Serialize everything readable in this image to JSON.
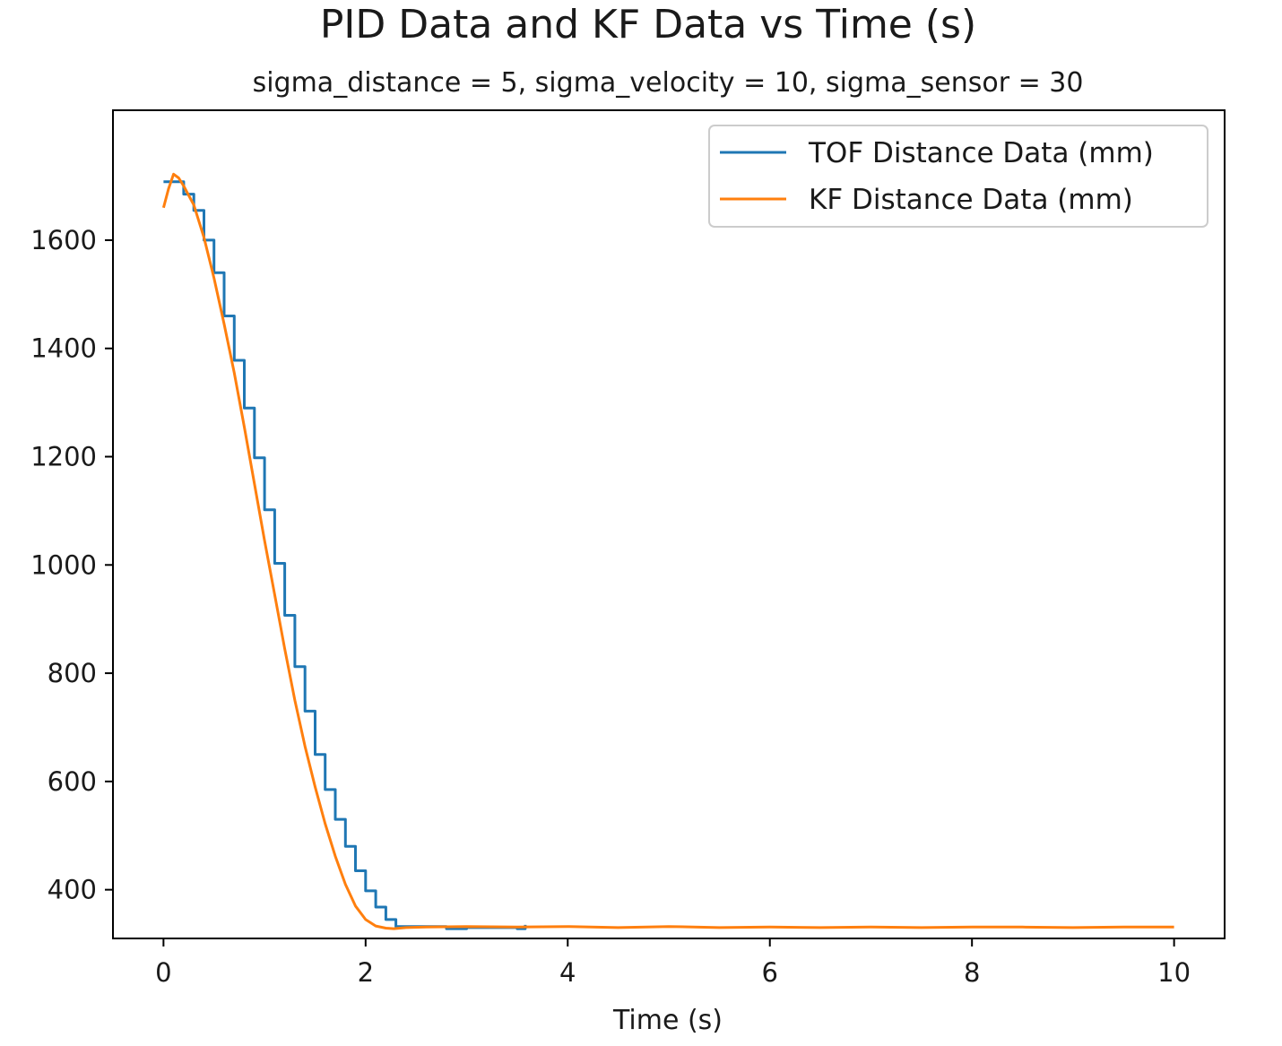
{
  "chart_data": {
    "type": "line",
    "title": "PID Data and KF Data vs Time (s)",
    "subtitle": "sigma_distance = 5, sigma_velocity = 10, sigma_sensor = 30",
    "xlabel": "Time (s)",
    "ylabel": "",
    "xlim": [
      -0.5,
      10.5
    ],
    "ylim": [
      310,
      1840
    ],
    "xticks": [
      0,
      2,
      4,
      6,
      8,
      10
    ],
    "yticks": [
      400,
      600,
      800,
      1000,
      1200,
      1400,
      1600
    ],
    "grid": false,
    "legend_position": "top-right",
    "series": [
      {
        "name": "TOF Distance Data (mm)",
        "color": "#1f77b4",
        "step": true,
        "x": [
          0.0,
          0.1,
          0.2,
          0.3,
          0.4,
          0.5,
          0.6,
          0.7,
          0.8,
          0.9,
          1.0,
          1.1,
          1.2,
          1.3,
          1.4,
          1.5,
          1.6,
          1.7,
          1.8,
          1.9,
          2.0,
          2.1,
          2.2,
          2.3,
          2.5,
          2.8,
          3.0,
          3.3,
          3.5,
          3.58
        ],
        "y": [
          1708,
          1708,
          1685,
          1655,
          1600,
          1540,
          1460,
          1378,
          1290,
          1198,
          1102,
          1003,
          907,
          812,
          730,
          650,
          585,
          530,
          480,
          435,
          398,
          368,
          345,
          332,
          332,
          328,
          330,
          330,
          328,
          335
        ]
      },
      {
        "name": "KF Distance Data (mm)",
        "color": "#ff7f0e",
        "step": false,
        "x": [
          0.0,
          0.05,
          0.1,
          0.15,
          0.2,
          0.3,
          0.4,
          0.5,
          0.6,
          0.7,
          0.8,
          0.9,
          1.0,
          1.1,
          1.2,
          1.3,
          1.4,
          1.5,
          1.6,
          1.7,
          1.8,
          1.9,
          2.0,
          2.1,
          2.2,
          2.28,
          2.4,
          2.6,
          3.0,
          3.5,
          4.0,
          4.5,
          5.0,
          5.5,
          6.0,
          6.5,
          7.0,
          7.5,
          8.0,
          8.5,
          9.0,
          9.5,
          10.0
        ],
        "y": [
          1660,
          1695,
          1722,
          1715,
          1700,
          1665,
          1605,
          1530,
          1445,
          1355,
          1255,
          1150,
          1045,
          945,
          845,
          750,
          665,
          590,
          522,
          462,
          410,
          370,
          345,
          333,
          329,
          328,
          330,
          331,
          332,
          331,
          332,
          330,
          332,
          330,
          331,
          330,
          331,
          330,
          331,
          331,
          330,
          331,
          331
        ]
      }
    ]
  }
}
